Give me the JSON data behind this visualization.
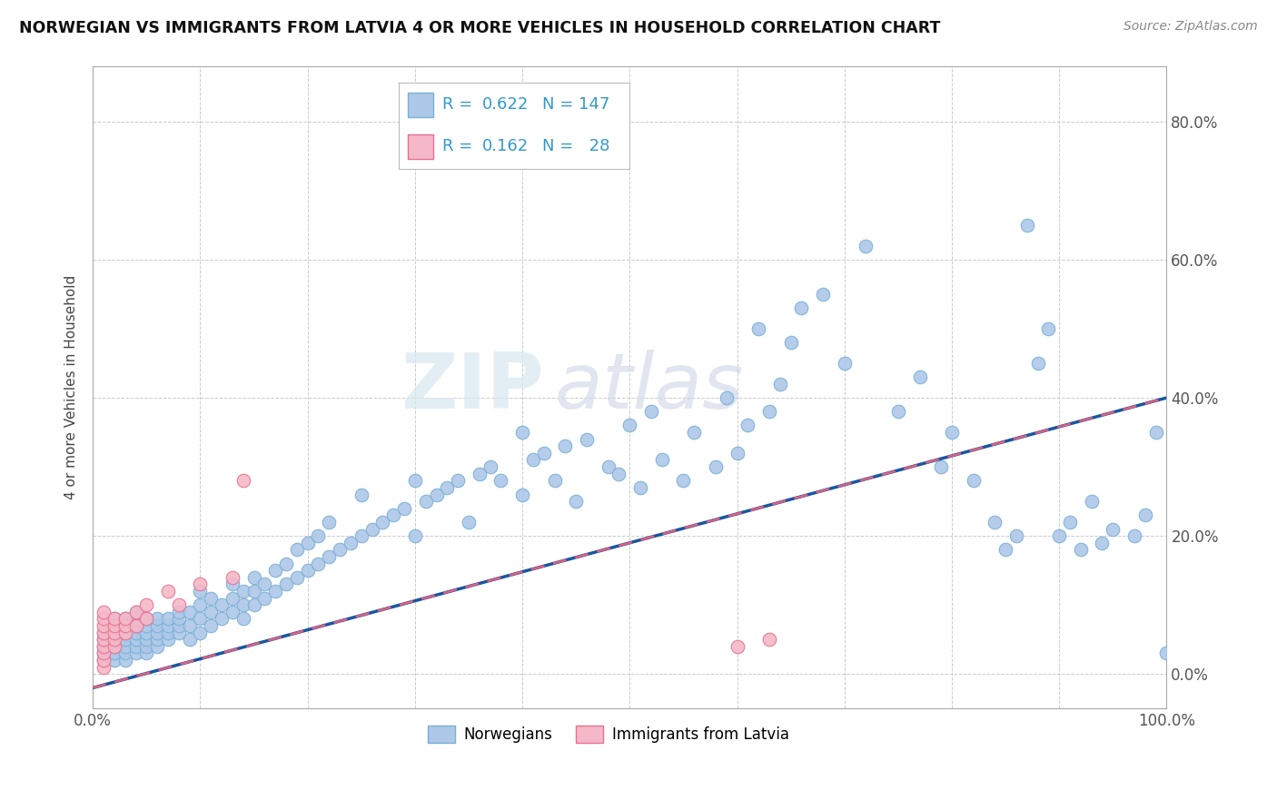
{
  "title": "NORWEGIAN VS IMMIGRANTS FROM LATVIA 4 OR MORE VEHICLES IN HOUSEHOLD CORRELATION CHART",
  "source": "Source: ZipAtlas.com",
  "ylabel": "4 or more Vehicles in Household",
  "xlim": [
    0.0,
    1.0
  ],
  "ylim": [
    -0.05,
    0.88
  ],
  "xticks": [
    0.0,
    0.1,
    0.2,
    0.3,
    0.4,
    0.5,
    0.6,
    0.7,
    0.8,
    0.9,
    1.0
  ],
  "yticks": [
    0.0,
    0.2,
    0.4,
    0.6,
    0.8
  ],
  "norwegian_color": "#adc8e8",
  "latvian_color": "#f5b8c8",
  "norwegian_edge": "#7aafd4",
  "latvian_edge": "#e87090",
  "trendline_norwegian_color": "#1a56a0",
  "trendline_latvian_color": "#e06080",
  "R_norwegian": 0.622,
  "N_norwegian": 147,
  "R_latvian": 0.162,
  "N_latvian": 28,
  "watermark_zip": "ZIP",
  "watermark_atlas": "atlas",
  "background_color": "#ffffff",
  "grid_color": "#cccccc",
  "legend_norwegian": "Norwegians",
  "legend_latvian": "Immigrants from Latvia",
  "legend_text_color": "#3399cc",
  "nor_trendline": [
    -0.02,
    0.4
  ],
  "lat_trendline": [
    -0.02,
    0.4
  ],
  "nor_x": [
    0.01,
    0.01,
    0.01,
    0.01,
    0.01,
    0.02,
    0.02,
    0.02,
    0.02,
    0.02,
    0.02,
    0.02,
    0.03,
    0.03,
    0.03,
    0.03,
    0.03,
    0.03,
    0.03,
    0.04,
    0.04,
    0.04,
    0.04,
    0.04,
    0.04,
    0.04,
    0.05,
    0.05,
    0.05,
    0.05,
    0.05,
    0.05,
    0.06,
    0.06,
    0.06,
    0.06,
    0.06,
    0.07,
    0.07,
    0.07,
    0.07,
    0.08,
    0.08,
    0.08,
    0.08,
    0.09,
    0.09,
    0.09,
    0.1,
    0.1,
    0.1,
    0.1,
    0.11,
    0.11,
    0.11,
    0.12,
    0.12,
    0.13,
    0.13,
    0.13,
    0.14,
    0.14,
    0.14,
    0.15,
    0.15,
    0.15,
    0.16,
    0.16,
    0.17,
    0.17,
    0.18,
    0.18,
    0.19,
    0.19,
    0.2,
    0.2,
    0.21,
    0.21,
    0.22,
    0.22,
    0.23,
    0.24,
    0.25,
    0.25,
    0.26,
    0.27,
    0.28,
    0.29,
    0.3,
    0.3,
    0.31,
    0.32,
    0.33,
    0.34,
    0.35,
    0.36,
    0.37,
    0.38,
    0.4,
    0.4,
    0.41,
    0.42,
    0.43,
    0.44,
    0.45,
    0.46,
    0.48,
    0.49,
    0.5,
    0.51,
    0.52,
    0.53,
    0.55,
    0.56,
    0.58,
    0.59,
    0.6,
    0.61,
    0.62,
    0.63,
    0.64,
    0.65,
    0.66,
    0.68,
    0.7,
    0.72,
    0.75,
    0.77,
    0.79,
    0.8,
    0.82,
    0.84,
    0.85,
    0.86,
    0.87,
    0.88,
    0.89,
    0.9,
    0.91,
    0.92,
    0.93,
    0.94,
    0.95,
    0.97,
    0.98,
    0.99,
    1.0
  ],
  "nor_y": [
    0.02,
    0.03,
    0.04,
    0.05,
    0.06,
    0.02,
    0.03,
    0.04,
    0.05,
    0.06,
    0.07,
    0.08,
    0.02,
    0.03,
    0.04,
    0.05,
    0.06,
    0.07,
    0.08,
    0.03,
    0.04,
    0.05,
    0.06,
    0.07,
    0.08,
    0.09,
    0.03,
    0.04,
    0.05,
    0.06,
    0.07,
    0.08,
    0.04,
    0.05,
    0.06,
    0.07,
    0.08,
    0.05,
    0.06,
    0.07,
    0.08,
    0.06,
    0.07,
    0.08,
    0.09,
    0.05,
    0.07,
    0.09,
    0.06,
    0.08,
    0.1,
    0.12,
    0.07,
    0.09,
    0.11,
    0.08,
    0.1,
    0.09,
    0.11,
    0.13,
    0.08,
    0.1,
    0.12,
    0.1,
    0.12,
    0.14,
    0.11,
    0.13,
    0.12,
    0.15,
    0.13,
    0.16,
    0.14,
    0.18,
    0.15,
    0.19,
    0.16,
    0.2,
    0.17,
    0.22,
    0.18,
    0.19,
    0.2,
    0.26,
    0.21,
    0.22,
    0.23,
    0.24,
    0.2,
    0.28,
    0.25,
    0.26,
    0.27,
    0.28,
    0.22,
    0.29,
    0.3,
    0.28,
    0.26,
    0.35,
    0.31,
    0.32,
    0.28,
    0.33,
    0.25,
    0.34,
    0.3,
    0.29,
    0.36,
    0.27,
    0.38,
    0.31,
    0.28,
    0.35,
    0.3,
    0.4,
    0.32,
    0.36,
    0.5,
    0.38,
    0.42,
    0.48,
    0.53,
    0.55,
    0.45,
    0.62,
    0.38,
    0.43,
    0.3,
    0.35,
    0.28,
    0.22,
    0.18,
    0.2,
    0.65,
    0.45,
    0.5,
    0.2,
    0.22,
    0.18,
    0.25,
    0.19,
    0.21,
    0.2,
    0.23,
    0.35,
    0.03
  ],
  "lat_x": [
    0.01,
    0.01,
    0.01,
    0.01,
    0.01,
    0.01,
    0.01,
    0.01,
    0.01,
    0.02,
    0.02,
    0.02,
    0.02,
    0.02,
    0.03,
    0.03,
    0.03,
    0.04,
    0.04,
    0.05,
    0.05,
    0.07,
    0.08,
    0.1,
    0.13,
    0.14,
    0.6,
    0.63
  ],
  "lat_y": [
    0.01,
    0.02,
    0.03,
    0.04,
    0.05,
    0.06,
    0.07,
    0.08,
    0.09,
    0.04,
    0.05,
    0.06,
    0.07,
    0.08,
    0.06,
    0.07,
    0.08,
    0.07,
    0.09,
    0.08,
    0.1,
    0.12,
    0.1,
    0.13,
    0.14,
    0.28,
    0.04,
    0.05
  ]
}
